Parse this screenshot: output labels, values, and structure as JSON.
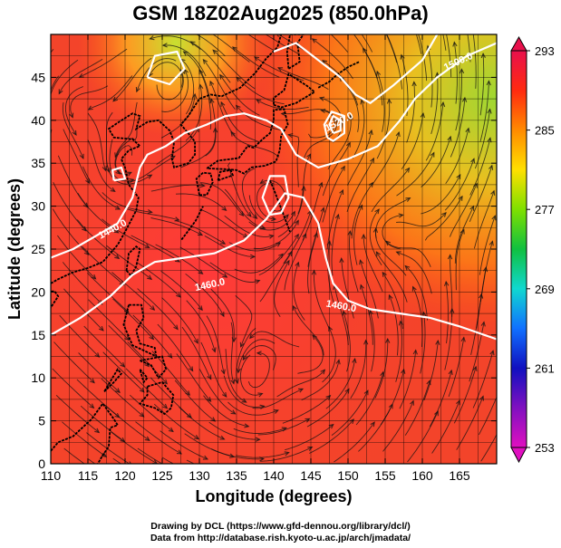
{
  "title": "GSM 18Z02Aug2025 (850.0hPa)",
  "credits": {
    "line1": "Drawing by DCL (https://www.gfd-dennou.org/library/dcl/)",
    "line2": "Data from http://database.rish.kyoto-u.ac.jp/arch/jmadata/"
  },
  "chart_data": {
    "type": "map",
    "xlabel": "Longitude (degrees)",
    "ylabel": "Latitude  (degrees)",
    "xlim": [
      110,
      170
    ],
    "ylim": [
      0,
      50
    ],
    "xticks": [
      "110",
      "115",
      "120",
      "125",
      "130",
      "135",
      "140",
      "145",
      "150",
      "155",
      "160",
      "165"
    ],
    "yticks": [
      "0",
      "5",
      "10",
      "15",
      "20",
      "25",
      "30",
      "35",
      "40",
      "45"
    ],
    "colorbar": {
      "min": 253,
      "max": 293,
      "labels": [
        "293",
        "285",
        "277",
        "269",
        "261",
        "253"
      ],
      "colors": [
        "#e8104c",
        "#ff2a10",
        "#ff8a00",
        "#ffe000",
        "#7fe000",
        "#10c040",
        "#10d8d0",
        "#1070ff",
        "#1010c0",
        "#8010c0",
        "#e010c0"
      ]
    },
    "field": "temperature (K) with streamlines and geopotential height contours",
    "contour_labels": [
      {
        "text": "1440.0",
        "lon": 118.5,
        "lat": 27.0,
        "angle": -28
      },
      {
        "text": "1460.0",
        "lon": 131.5,
        "lat": 20.5,
        "angle": -12
      },
      {
        "text": "1460.0",
        "lon": 149.0,
        "lat": 18.0,
        "angle": 10
      },
      {
        "text": "1520.0",
        "lon": 149.0,
        "lat": 39.5,
        "angle": -28
      },
      {
        "text": "1500.0",
        "lon": 165.0,
        "lat": 46.5,
        "angle": -25
      }
    ]
  }
}
